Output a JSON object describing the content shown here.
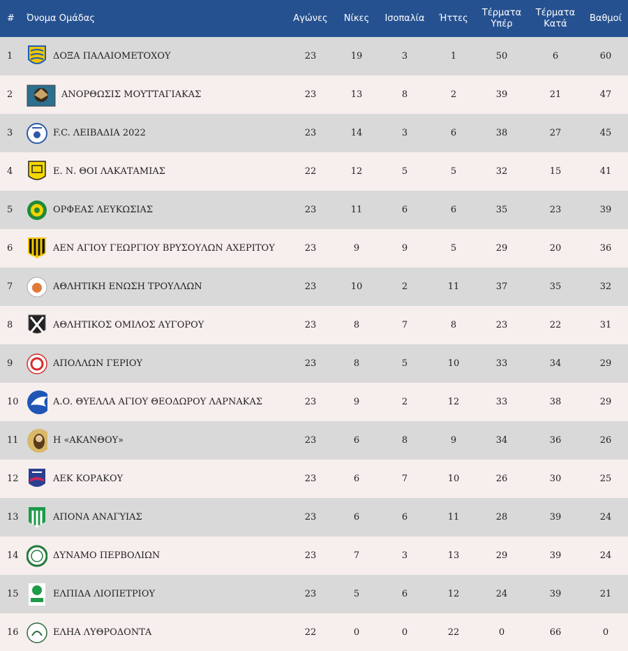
{
  "headers": {
    "rank": "#",
    "team": "Όνομα Ομάδας",
    "played": "Αγώνες",
    "wins": "Νίκες",
    "draws": "Ισοπαλία",
    "losses": "Ήττες",
    "goals_for_1": "Τέρματα",
    "goals_for_2": "Υπέρ",
    "goals_against_1": "Τέρματα",
    "goals_against_2": "Κατά",
    "points": "Βαθμοί"
  },
  "rows": [
    {
      "rank": "1",
      "team": "ΔΟΞΑ ΠΑΛΑΙΟΜΕΤΟΧΟΥ",
      "played": "23",
      "wins": "19",
      "draws": "3",
      "losses": "1",
      "gf": "50",
      "ga": "6",
      "pts": "60",
      "logo_icon": "doxa-crest-icon",
      "logo_colors": [
        "#f2c400",
        "#1d5fb0"
      ]
    },
    {
      "rank": "2",
      "team": "ΑΝΟΡΘΩΣΙΣ ΜΟΥΤΤΑΓΙΑΚΑΣ",
      "played": "23",
      "wins": "13",
      "draws": "8",
      "losses": "2",
      "gf": "39",
      "ga": "21",
      "pts": "47",
      "logo_icon": "anorthosis-eagle-icon",
      "logo_colors": [
        "#2c6f8f",
        "#3a2a18"
      ]
    },
    {
      "rank": "3",
      "team": "F.C. ΛΕΙΒΑΔΙΑ 2022",
      "played": "23",
      "wins": "14",
      "draws": "3",
      "losses": "6",
      "gf": "38",
      "ga": "27",
      "pts": "45",
      "logo_icon": "livadia-crest-icon",
      "logo_colors": [
        "#ffffff",
        "#2d5aa8"
      ]
    },
    {
      "rank": "4",
      "team": "Ε. Ν. ΘΟΙ ΛΑΚΑΤΑΜΙΑΣ",
      "played": "22",
      "wins": "12",
      "draws": "5",
      "losses": "5",
      "gf": "32",
      "ga": "15",
      "pts": "41",
      "logo_icon": "thoi-crest-icon",
      "logo_colors": [
        "#f5d800",
        "#222222"
      ]
    },
    {
      "rank": "5",
      "team": "ΟΡΦΕΑΣ ΛΕΥΚΩΣΙΑΣ",
      "played": "23",
      "wins": "11",
      "draws": "6",
      "losses": "6",
      "gf": "35",
      "ga": "23",
      "pts": "39",
      "logo_icon": "orfeas-crest-icon",
      "logo_colors": [
        "#1f8a3a",
        "#f3d200"
      ]
    },
    {
      "rank": "6",
      "team": "ΑΕΝ ΑΓΙΟΥ ΓΕΩΡΓΙΟΥ ΒΡΥΣΟΥΛΩΝ ΑΧΕΡΙΤΟΥ",
      "played": "23",
      "wins": "9",
      "draws": "9",
      "losses": "5",
      "gf": "29",
      "ga": "20",
      "pts": "36",
      "logo_icon": "aen-crest-icon",
      "logo_colors": [
        "#111111",
        "#f5c800"
      ]
    },
    {
      "rank": "7",
      "team": "ΑΘΛΗΤΙΚΗ ΕΝΩΣΗ ΤΡΟΥΛΛΩΝ",
      "played": "23",
      "wins": "10",
      "draws": "2",
      "losses": "11",
      "gf": "37",
      "ga": "35",
      "pts": "32",
      "logo_icon": "troullon-crest-icon",
      "logo_colors": [
        "#ffffff",
        "#e07a3a"
      ]
    },
    {
      "rank": "8",
      "team": "ΑΘΛΗΤΙΚΟΣ ΟΜΙΛΟΣ ΑΥΓΟΡΟΥ",
      "played": "23",
      "wins": "8",
      "draws": "7",
      "losses": "8",
      "gf": "23",
      "ga": "22",
      "pts": "31",
      "logo_icon": "avgorou-crest-icon",
      "logo_colors": [
        "#222222",
        "#ffffff"
      ]
    },
    {
      "rank": "9",
      "team": "ΑΠΟΛΛΩΝ ΓΕΡΙΟΥ",
      "played": "23",
      "wins": "8",
      "draws": "5",
      "losses": "10",
      "gf": "33",
      "ga": "34",
      "pts": "29",
      "logo_icon": "apollon-geriou-crest-icon",
      "logo_colors": [
        "#ffffff",
        "#d62c2c"
      ]
    },
    {
      "rank": "10",
      "team": "Α.Ο. ΘΥΕΛΛΑ ΑΓΙΟΥ ΘΕΟΔΩΡΟΥ ΛΑΡΝΑΚΑΣ",
      "played": "23",
      "wins": "9",
      "draws": "2",
      "losses": "12",
      "gf": "33",
      "ga": "38",
      "pts": "29",
      "logo_icon": "thyella-crest-icon",
      "logo_colors": [
        "#1f56b5",
        "#ffffff"
      ]
    },
    {
      "rank": "11",
      "team": "Η «ΑΚΑΝΘΟΥ»",
      "played": "23",
      "wins": "6",
      "draws": "8",
      "losses": "9",
      "gf": "34",
      "ga": "36",
      "pts": "26",
      "logo_icon": "akanthou-icon-crest",
      "logo_colors": [
        "#d9b86a",
        "#5a3b1a"
      ]
    },
    {
      "rank": "12",
      "team": "ΑΕΚ ΚΟΡΑΚΟΥ",
      "played": "23",
      "wins": "6",
      "draws": "7",
      "losses": "10",
      "gf": "26",
      "ga": "30",
      "pts": "25",
      "logo_icon": "aek-korakou-crest-icon",
      "logo_colors": [
        "#2a3f8f",
        "#c8275a"
      ]
    },
    {
      "rank": "13",
      "team": "ΑΠΟΝΑ ΑΝΑΓΥΙΑΣ",
      "played": "23",
      "wins": "6",
      "draws": "6",
      "losses": "11",
      "gf": "28",
      "ga": "39",
      "pts": "24",
      "logo_icon": "apona-crest-icon",
      "logo_colors": [
        "#1f9a4a",
        "#ffffff"
      ]
    },
    {
      "rank": "14",
      "team": "ΔΥΝΑΜΟ ΠΕΡΒΟΛΙΩΝ",
      "played": "23",
      "wins": "7",
      "draws": "3",
      "losses": "13",
      "gf": "29",
      "ga": "39",
      "pts": "24",
      "logo_icon": "dynamo-crest-icon",
      "logo_colors": [
        "#ffffff",
        "#1e7a3a"
      ]
    },
    {
      "rank": "15",
      "team": "ΕΛΠΙΔΑ ΛΙΟΠΕΤΡΙΟΥ",
      "played": "23",
      "wins": "5",
      "draws": "6",
      "losses": "12",
      "gf": "24",
      "ga": "39",
      "pts": "21",
      "logo_icon": "elpida-crest-icon",
      "logo_colors": [
        "#ffffff",
        "#1f9a4a"
      ]
    },
    {
      "rank": "16",
      "team": "ΕΛΗΑ ΛΥΘΡΟΔΟΝΤΑ",
      "played": "22",
      "wins": "0",
      "draws": "0",
      "losses": "22",
      "gf": "0",
      "ga": "66",
      "pts": "0",
      "logo_icon": "elia-crest-icon",
      "logo_colors": [
        "#ffffff",
        "#2a6a3a"
      ]
    }
  ],
  "colors": {
    "header_bg": "#265190",
    "row_odd": "#d9d9d9",
    "row_even": "#f7eeee"
  }
}
